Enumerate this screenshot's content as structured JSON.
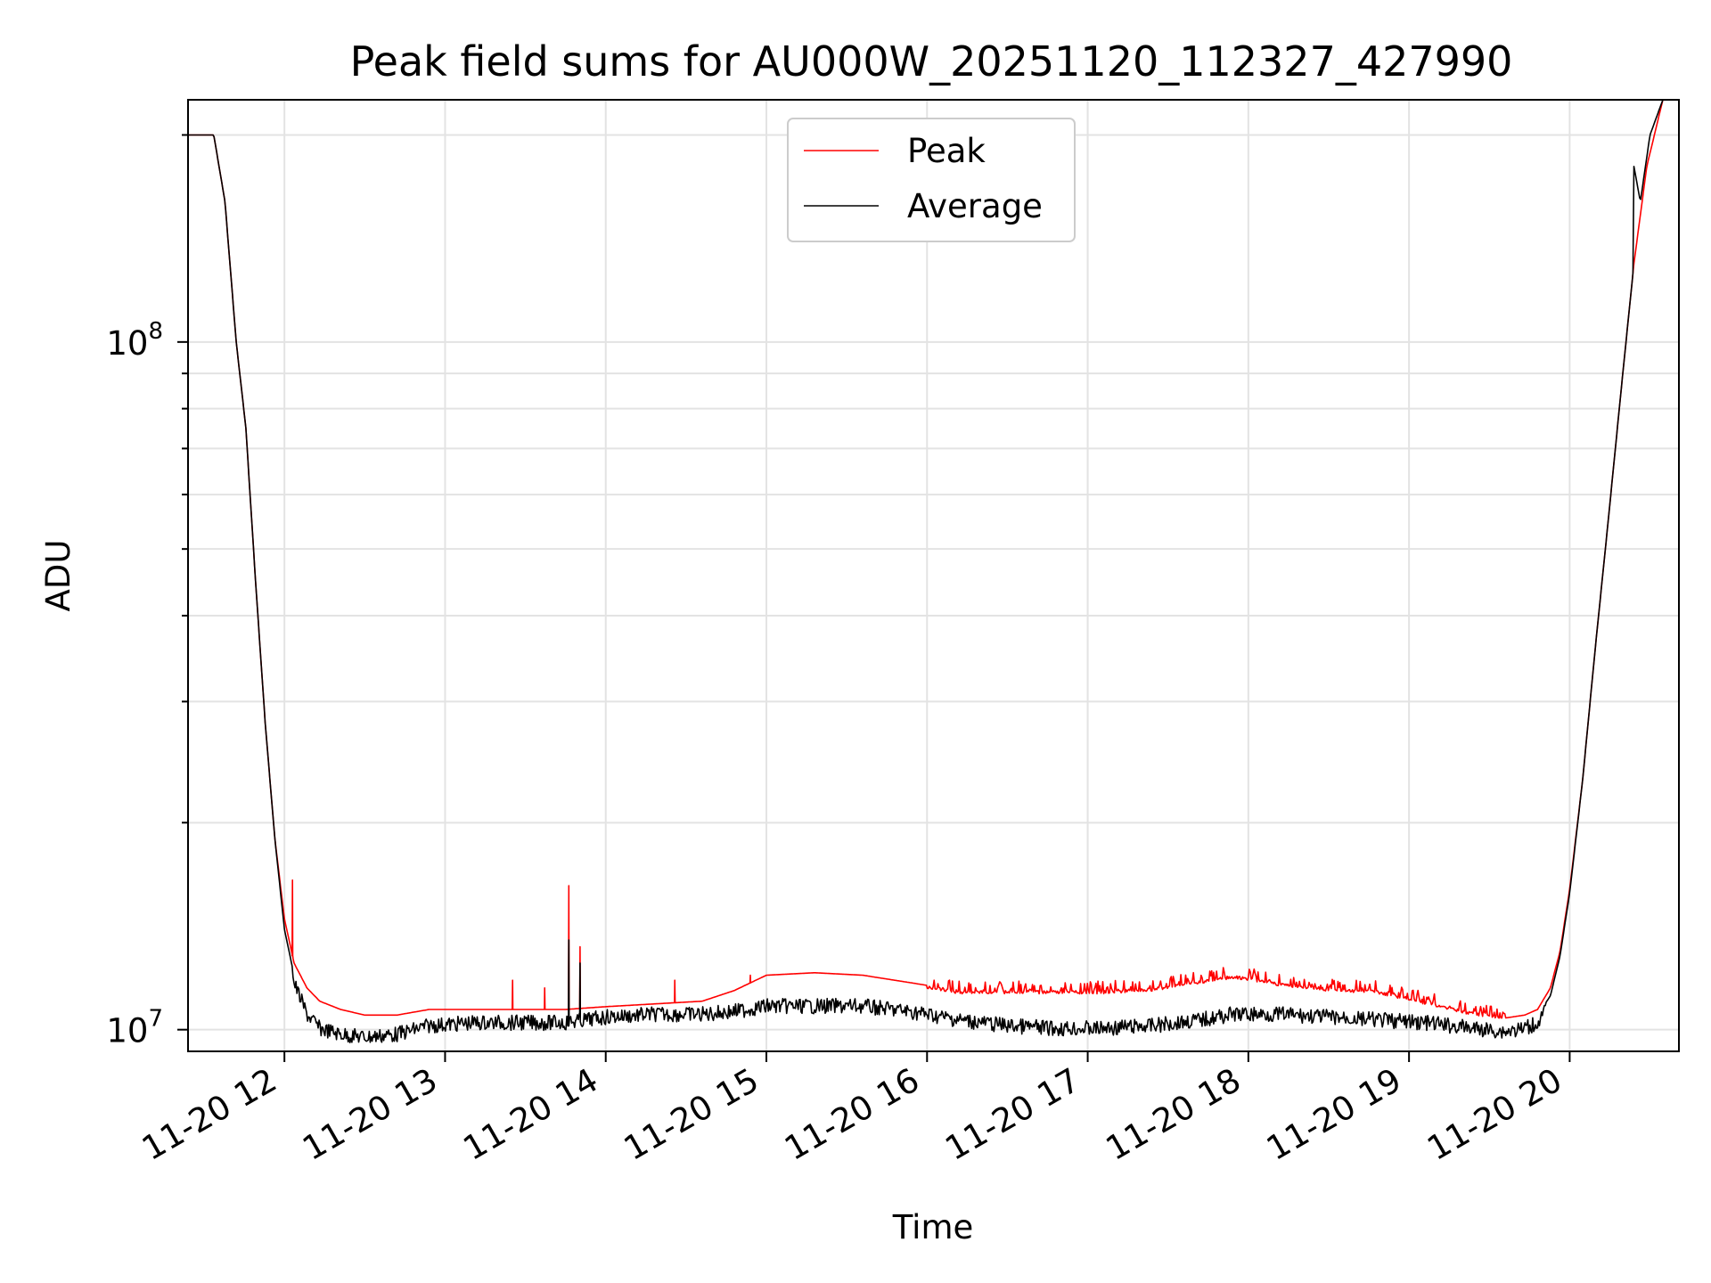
{
  "chart_data": {
    "type": "line",
    "title": "Peak field sums for AU000W_20251120_112327_427990",
    "xlabel": "Time",
    "ylabel": "ADU",
    "yscale": "log",
    "grid": true,
    "legend_position": "top-center",
    "xlim": [
      11.4,
      20.68
    ],
    "ylim": [
      9300000.0,
      225000000.0
    ],
    "x_ticks": [
      {
        "value": 12,
        "label": "11-20 12"
      },
      {
        "value": 13,
        "label": "11-20 13"
      },
      {
        "value": 14,
        "label": "11-20 14"
      },
      {
        "value": 15,
        "label": "11-20 15"
      },
      {
        "value": 16,
        "label": "11-20 16"
      },
      {
        "value": 17,
        "label": "11-20 17"
      },
      {
        "value": 18,
        "label": "11-20 18"
      },
      {
        "value": 19,
        "label": "11-20 19"
      },
      {
        "value": 20,
        "label": "11-20 20"
      }
    ],
    "y_ticks": [
      {
        "value": 10000000,
        "base": "10",
        "exp": "7"
      },
      {
        "value": 100000000,
        "base": "10",
        "exp": "8"
      }
    ],
    "series": [
      {
        "name": "Peak",
        "color": "#ff0000",
        "x": [
          11.4,
          11.56,
          11.63,
          11.7,
          11.76,
          11.82,
          11.88,
          11.94,
          12.0,
          12.06,
          12.14,
          12.22,
          12.35,
          12.5,
          12.7,
          12.9,
          13.2,
          13.5,
          13.75,
          14.0,
          14.3,
          14.6,
          14.8,
          15.0,
          15.3,
          15.6,
          15.9,
          16.2,
          16.5,
          16.8,
          17.1,
          17.4,
          17.7,
          17.9,
          18.2,
          18.5,
          18.8,
          19.1,
          19.4,
          19.6,
          19.72,
          19.8,
          19.88,
          19.94,
          20.0,
          20.08,
          20.16,
          20.24,
          20.32,
          20.4,
          20.48,
          20.58
        ],
        "y": [
          200000000.0,
          200000000.0,
          160000000.0,
          100000000.0,
          75000000.0,
          45000000.0,
          28000000.0,
          19000000.0,
          14500000.0,
          12500000.0,
          11500000.0,
          11000000.0,
          10700000.0,
          10500000.0,
          10500000.0,
          10700000.0,
          10700000.0,
          10700000.0,
          10700000.0,
          10800000.0,
          10900000.0,
          11000000.0,
          11400000.0,
          12000000.0,
          12100000.0,
          12000000.0,
          11700000.0,
          11400000.0,
          11400000.0,
          11400000.0,
          11400000.0,
          11500000.0,
          11800000.0,
          12000000.0,
          11700000.0,
          11500000.0,
          11400000.0,
          11000000.0,
          10600000.0,
          10400000.0,
          10500000.0,
          10700000.0,
          11500000.0,
          13000000.0,
          16000000.0,
          23000000.0,
          36000000.0,
          55000000.0,
          85000000.0,
          130000000.0,
          180000000.0,
          225000000.0
        ],
        "spikes": [
          {
            "x": 12.05,
            "y": 16500000.0
          },
          {
            "x": 13.42,
            "y": 11800000.0
          },
          {
            "x": 13.62,
            "y": 11500000.0
          },
          {
            "x": 13.77,
            "y": 16200000.0
          },
          {
            "x": 13.84,
            "y": 13200000.0
          },
          {
            "x": 14.43,
            "y": 11800000.0
          },
          {
            "x": 14.9,
            "y": 12000000.0
          }
        ],
        "noise_range": [
          16.0,
          19.6
        ],
        "noise_amplitude": 0.05
      },
      {
        "name": "Average",
        "color": "#000000",
        "x": [
          11.4,
          11.56,
          11.63,
          11.7,
          11.76,
          11.82,
          11.88,
          11.94,
          12.0,
          12.06,
          12.14,
          12.22,
          12.35,
          12.5,
          12.7,
          12.9,
          13.2,
          13.5,
          13.75,
          14.0,
          14.3,
          14.6,
          14.8,
          15.0,
          15.3,
          15.6,
          15.9,
          16.2,
          16.5,
          16.8,
          17.1,
          17.4,
          17.7,
          17.9,
          18.2,
          18.5,
          18.8,
          19.1,
          19.4,
          19.6,
          19.72,
          19.8,
          19.88,
          19.94,
          20.0,
          20.08,
          20.16,
          20.24,
          20.32,
          20.4,
          20.4,
          20.44,
          20.5,
          20.58
        ],
        "y": [
          200000000.0,
          200000000.0,
          160000000.0,
          100000000.0,
          75000000.0,
          45000000.0,
          28000000.0,
          19000000.0,
          14000000.0,
          12000000.0,
          10800000.0,
          10300000.0,
          10100000.0,
          10000000.0,
          10100000.0,
          10400000.0,
          10500000.0,
          10500000.0,
          10500000.0,
          10700000.0,
          10800000.0,
          10800000.0,
          10900000.0,
          11100000.0,
          11100000.0,
          11100000.0,
          10900000.0,
          10600000.0,
          10400000.0,
          10300000.0,
          10300000.0,
          10400000.0,
          10600000.0,
          10800000.0,
          10800000.0,
          10700000.0,
          10600000.0,
          10500000.0,
          10300000.0,
          10200000.0,
          10300000.0,
          10500000.0,
          11200000.0,
          12800000.0,
          15800000.0,
          23000000.0,
          36000000.0,
          55000000.0,
          85000000.0,
          130000000.0,
          180000000.0,
          160000000.0,
          200000000.0,
          225000000.0
        ],
        "spikes": [
          {
            "x": 13.77,
            "y": 13500000.0
          },
          {
            "x": 13.84,
            "y": 12500000.0
          }
        ],
        "noise_range": [
          12.05,
          19.85
        ],
        "noise_amplitude": 0.05
      }
    ]
  }
}
